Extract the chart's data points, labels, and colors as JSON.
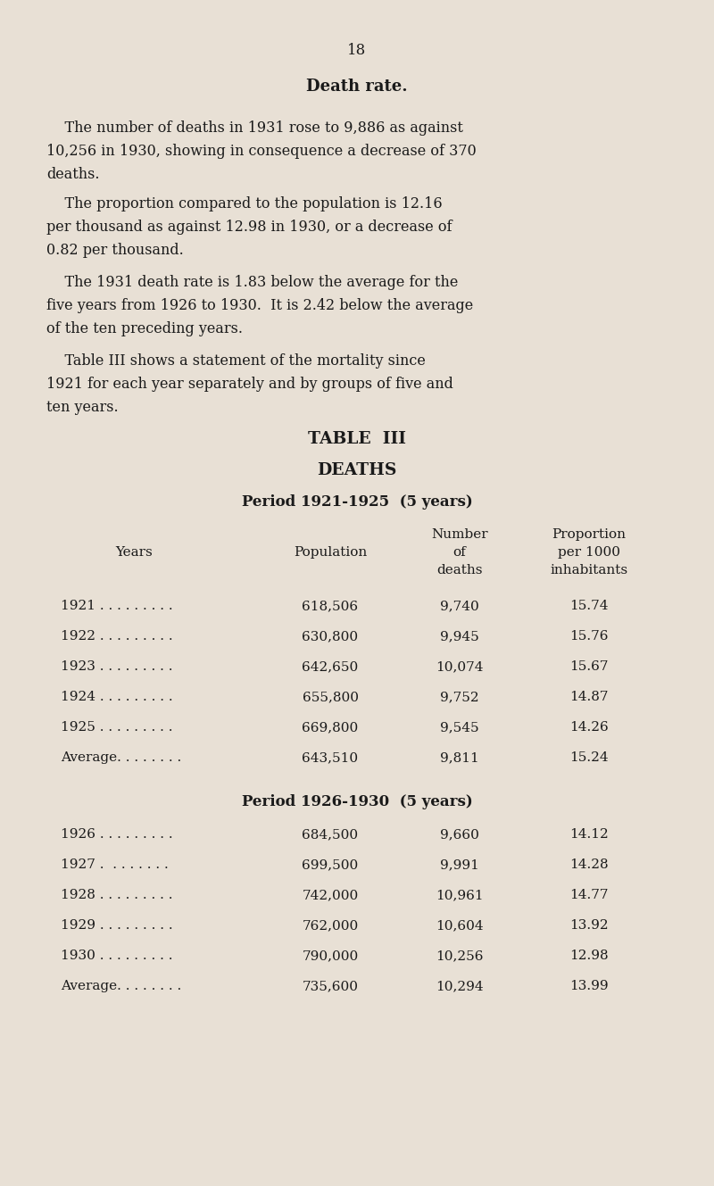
{
  "page_number": "18",
  "bg_color": "#e8e0d5",
  "text_color": "#1a1a1a",
  "title": "Death rate.",
  "para1_lines": [
    "    The number of deaths in 1931 rose to 9,886 as against",
    "10,256 in 1930, showing in consequence a decrease of 370",
    "deaths."
  ],
  "para2_lines": [
    "    The proportion compared to the population is 12.16",
    "per thousand as against 12.98 in 1930, or a decrease of",
    "0.82 per thousand."
  ],
  "para3_lines": [
    "    The 1931 death rate is 1.83 below the average for the",
    "five years from 1926 to 1930.  It is 2.42 below the average",
    "of the ten preceding years."
  ],
  "para4_lines": [
    "    Table III shows a statement of the mortality since",
    "1921 for each year separately and by groups of five and",
    "ten years."
  ],
  "table_title": "TABLE  III",
  "table_subtitle": "DEATHS",
  "period1_header": "Period 1921-1925  (5 years)",
  "period2_header": "Period 1926-1930  (5 years)",
  "period1_rows": [
    [
      "1921 . . . . . . . . .",
      "618,506",
      "9,740",
      "15.74"
    ],
    [
      "1922 . . . . . . . . .",
      "630,800",
      "9,945",
      "15.76"
    ],
    [
      "1923 . . . . . . . . .",
      "642,650",
      "10,074",
      "15.67"
    ],
    [
      "1924 . . . . . . . . .",
      "655,800",
      "9,752",
      "14.87"
    ],
    [
      "1925 . . . . . . . . .",
      "669,800",
      "9,545",
      "14.26"
    ],
    [
      "Average. . . . . . . .",
      "643,510",
      "9,811",
      "15.24"
    ]
  ],
  "period2_rows": [
    [
      "1926 . . . . . . . . .",
      "684,500",
      "9,660",
      "14.12"
    ],
    [
      "1927 .  . . . . . . .",
      "699,500",
      "9,991",
      "14.28"
    ],
    [
      "1928 . . . . . . . . .",
      "742,000",
      "10,961",
      "14.77"
    ],
    [
      "1929 . . . . . . . . .",
      "762,000",
      "10,604",
      "13.92"
    ],
    [
      "1930 . . . . . . . . .",
      "790,000",
      "10,256",
      "12.98"
    ],
    [
      "Average. . . . . . . .",
      "735,600",
      "10,294",
      "13.99"
    ]
  ]
}
